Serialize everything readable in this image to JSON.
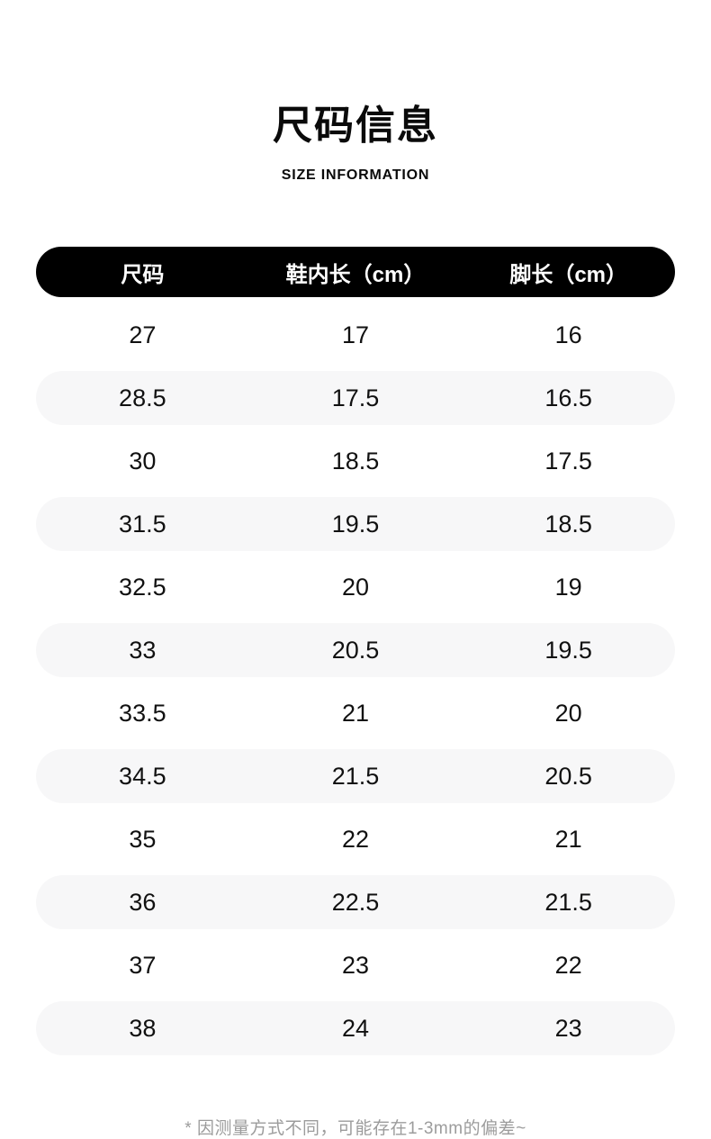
{
  "page": {
    "title": "尺码信息",
    "subtitle": "SIZE INFORMATION",
    "footnote": "* 因测量方式不同，可能存在1-3mm的偏差~"
  },
  "chart_data": {
    "type": "table",
    "title": "尺码信息",
    "subtitle": "SIZE INFORMATION",
    "columns": [
      "尺码",
      "鞋内长（cm）",
      "脚长（cm）"
    ],
    "rows": [
      [
        "27",
        "17",
        "16"
      ],
      [
        "28.5",
        "17.5",
        "16.5"
      ],
      [
        "30",
        "18.5",
        "17.5"
      ],
      [
        "31.5",
        "19.5",
        "18.5"
      ],
      [
        "32.5",
        "20",
        "19"
      ],
      [
        "33",
        "20.5",
        "19.5"
      ],
      [
        "33.5",
        "21",
        "20"
      ],
      [
        "34.5",
        "21.5",
        "20.5"
      ],
      [
        "35",
        "22",
        "21"
      ],
      [
        "36",
        "22.5",
        "21.5"
      ],
      [
        "37",
        "23",
        "22"
      ],
      [
        "38",
        "24",
        "23"
      ]
    ],
    "footnote": "* 因测量方式不同，可能存在1-3mm的偏差~",
    "layout": {
      "row_striping": "alternating, even rows shaded pills",
      "header_style": "black pill, white bold text"
    }
  },
  "colors": {
    "header_bg": "#000000",
    "header_text": "#ffffff",
    "row_alt_bg": "#f7f7f8",
    "body_text": "#111111",
    "footnote_text": "#9c9c9c",
    "background": "#ffffff"
  }
}
